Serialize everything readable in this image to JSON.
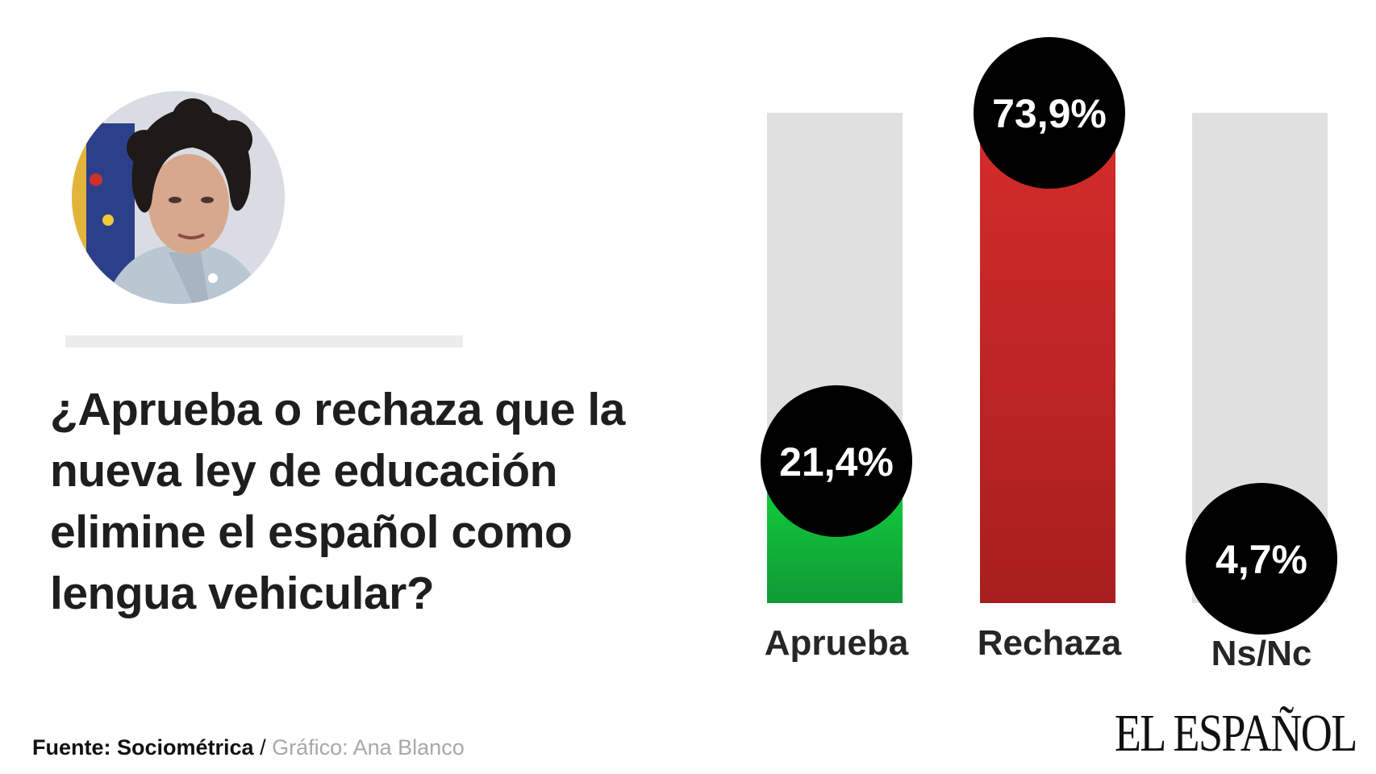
{
  "question": "¿Aprueba o rechaza que la nueva ley de educación elimine el español como lengua vehicular?",
  "footer": {
    "source_label": "Fuente: Sociométrica",
    "separator": " / ",
    "graphic_credit": "Gráfico: Ana Blanco"
  },
  "logo": "EL ESPAÑOL",
  "colors": {
    "track": "#e0e0e0",
    "aprueba": "#14b43a",
    "rechaza": "#c82a2a",
    "bubble": "#000000"
  },
  "chart_data": {
    "type": "bar",
    "categories": [
      "Aprueba",
      "Rechaza",
      "Ns/Nc"
    ],
    "values": [
      21.4,
      73.9,
      4.7
    ],
    "value_labels": [
      "21,4%",
      "73,9%",
      "4,7%"
    ],
    "ylim": [
      0,
      73.9
    ],
    "grid": false,
    "legend": "none"
  }
}
